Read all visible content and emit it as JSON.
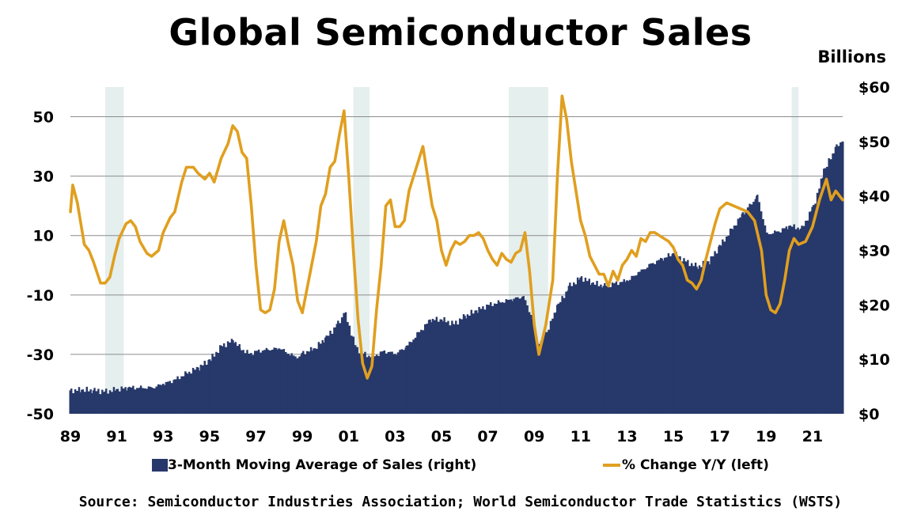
{
  "chart_data": {
    "type": "bar+line",
    "title": "Global Semiconductor Sales",
    "right_axis_unit": "Billions",
    "source": "Source: Semiconductor Industries Association; World Semiconductor Trade Statistics (WSTS)",
    "x_tick_labels": [
      "89",
      "91",
      "93",
      "95",
      "97",
      "99",
      "01",
      "03",
      "05",
      "07",
      "09",
      "11",
      "13",
      "15",
      "17",
      "19",
      "21"
    ],
    "x_tick_years": [
      1989,
      1991,
      1993,
      1995,
      1997,
      1999,
      2001,
      2003,
      2005,
      2007,
      2009,
      2011,
      2013,
      2015,
      2017,
      2019,
      2021
    ],
    "x_range": [
      1989.0,
      2022.3
    ],
    "y_left": {
      "ticks": [
        50,
        30,
        10,
        -10,
        -30,
        -50
      ],
      "tick_labels": [
        "50",
        "30",
        "10",
        "-10",
        "-30",
        "-50"
      ],
      "range": [
        -50,
        60
      ]
    },
    "y_right": {
      "ticks": [
        0,
        10,
        20,
        30,
        40,
        50,
        60
      ],
      "tick_labels": [
        "$0",
        "$10",
        "$20",
        "$30",
        "$40",
        "$50",
        "$60"
      ],
      "range": [
        0,
        60
      ]
    },
    "gridlines": "horizontal",
    "recession_shading": [
      [
        1990.5,
        1991.3
      ],
      [
        2001.2,
        2001.9
      ],
      [
        2007.9,
        2009.6
      ],
      [
        2020.1,
        2020.4
      ]
    ],
    "legend_position": "bottom",
    "colors": {
      "sales_bars": "#27386a",
      "yoy_line": "#e09f1f",
      "recession": "#e5efee",
      "grid": "#8c8c8c"
    },
    "series": [
      {
        "name": "3-Month Moving Average of Sales (right)",
        "kind": "bar",
        "axis": "right",
        "points": [
          [
            1989.0,
            4.3
          ],
          [
            1989.5,
            4.4
          ],
          [
            1990.0,
            4.3
          ],
          [
            1990.5,
            4.1
          ],
          [
            1991.0,
            4.5
          ],
          [
            1991.5,
            4.8
          ],
          [
            1992.0,
            4.8
          ],
          [
            1992.5,
            4.8
          ],
          [
            1993.0,
            5.5
          ],
          [
            1993.5,
            6.3
          ],
          [
            1994.0,
            7.5
          ],
          [
            1994.5,
            8.5
          ],
          [
            1995.0,
            10.0
          ],
          [
            1995.5,
            12.5
          ],
          [
            1996.0,
            13.5
          ],
          [
            1996.3,
            12.0
          ],
          [
            1996.7,
            11.0
          ],
          [
            1997.0,
            11.5
          ],
          [
            1997.5,
            11.8
          ],
          [
            1998.0,
            12.0
          ],
          [
            1998.4,
            11.0
          ],
          [
            1998.8,
            10.2
          ],
          [
            1999.0,
            11.2
          ],
          [
            1999.5,
            12.0
          ],
          [
            2000.0,
            14.0
          ],
          [
            2000.5,
            16.5
          ],
          [
            2000.8,
            18.5
          ],
          [
            2001.0,
            16.0
          ],
          [
            2001.3,
            12.0
          ],
          [
            2001.7,
            10.8
          ],
          [
            2002.0,
            10.5
          ],
          [
            2002.5,
            11.5
          ],
          [
            2003.0,
            11.0
          ],
          [
            2003.5,
            12.5
          ],
          [
            2004.0,
            15.0
          ],
          [
            2004.5,
            17.3
          ],
          [
            2005.0,
            17.3
          ],
          [
            2005.5,
            16.5
          ],
          [
            2006.0,
            18.0
          ],
          [
            2006.5,
            19.0
          ],
          [
            2007.0,
            20.0
          ],
          [
            2007.5,
            20.5
          ],
          [
            2008.0,
            21.0
          ],
          [
            2008.5,
            21.5
          ],
          [
            2008.9,
            17.5
          ],
          [
            2009.1,
            12.5
          ],
          [
            2009.5,
            15.0
          ],
          [
            2010.0,
            20.0
          ],
          [
            2010.5,
            23.5
          ],
          [
            2011.0,
            25.0
          ],
          [
            2011.5,
            24.0
          ],
          [
            2012.0,
            23.5
          ],
          [
            2012.5,
            24.0
          ],
          [
            2013.0,
            24.5
          ],
          [
            2013.5,
            26.0
          ],
          [
            2014.0,
            27.5
          ],
          [
            2014.5,
            28.5
          ],
          [
            2015.0,
            29.5
          ],
          [
            2015.5,
            28.0
          ],
          [
            2016.0,
            27.0
          ],
          [
            2016.5,
            28.0
          ],
          [
            2017.0,
            31.0
          ],
          [
            2017.5,
            34.0
          ],
          [
            2018.0,
            37.0
          ],
          [
            2018.6,
            40.0
          ],
          [
            2019.0,
            33.0
          ],
          [
            2019.5,
            33.5
          ],
          [
            2020.0,
            34.5
          ],
          [
            2020.5,
            34.0
          ],
          [
            2021.0,
            38.0
          ],
          [
            2021.5,
            45.0
          ],
          [
            2022.0,
            49.0
          ],
          [
            2022.3,
            50.0
          ]
        ]
      },
      {
        "name": "% Change Y/Y (left)",
        "kind": "line",
        "axis": "left",
        "points": [
          [
            1989.0,
            18
          ],
          [
            1989.1,
            27
          ],
          [
            1989.3,
            21
          ],
          [
            1989.6,
            7
          ],
          [
            1989.8,
            5
          ],
          [
            1990.0,
            1
          ],
          [
            1990.3,
            -6
          ],
          [
            1990.5,
            -6
          ],
          [
            1990.7,
            -4
          ],
          [
            1990.9,
            3
          ],
          [
            1991.1,
            9
          ],
          [
            1991.4,
            14
          ],
          [
            1991.6,
            15
          ],
          [
            1991.8,
            13
          ],
          [
            1992.0,
            8
          ],
          [
            1992.3,
            4
          ],
          [
            1992.5,
            3
          ],
          [
            1992.8,
            5
          ],
          [
            1993.0,
            11
          ],
          [
            1993.3,
            16
          ],
          [
            1993.5,
            18
          ],
          [
            1993.8,
            28
          ],
          [
            1994.0,
            33
          ],
          [
            1994.3,
            33
          ],
          [
            1994.5,
            31
          ],
          [
            1994.8,
            29
          ],
          [
            1995.0,
            31
          ],
          [
            1995.2,
            28
          ],
          [
            1995.5,
            36
          ],
          [
            1995.8,
            41
          ],
          [
            1996.0,
            47
          ],
          [
            1996.2,
            45
          ],
          [
            1996.4,
            38
          ],
          [
            1996.6,
            36
          ],
          [
            1996.8,
            20
          ],
          [
            1997.0,
            0
          ],
          [
            1997.2,
            -15
          ],
          [
            1997.4,
            -16
          ],
          [
            1997.6,
            -15
          ],
          [
            1997.8,
            -8
          ],
          [
            1998.0,
            8
          ],
          [
            1998.2,
            15
          ],
          [
            1998.4,
            7
          ],
          [
            1998.6,
            0
          ],
          [
            1998.8,
            -12
          ],
          [
            1999.0,
            -16
          ],
          [
            1999.2,
            -8
          ],
          [
            1999.4,
            0
          ],
          [
            1999.6,
            8
          ],
          [
            1999.8,
            20
          ],
          [
            2000.0,
            24
          ],
          [
            2000.2,
            33
          ],
          [
            2000.4,
            35
          ],
          [
            2000.6,
            44
          ],
          [
            2000.8,
            52
          ],
          [
            2001.0,
            30
          ],
          [
            2001.2,
            5
          ],
          [
            2001.4,
            -18
          ],
          [
            2001.6,
            -33
          ],
          [
            2001.8,
            -38
          ],
          [
            2002.0,
            -34
          ],
          [
            2002.2,
            -15
          ],
          [
            2002.4,
            0
          ],
          [
            2002.6,
            20
          ],
          [
            2002.8,
            22
          ],
          [
            2003.0,
            13
          ],
          [
            2003.2,
            13
          ],
          [
            2003.4,
            15
          ],
          [
            2003.6,
            25
          ],
          [
            2003.8,
            30
          ],
          [
            2004.0,
            35
          ],
          [
            2004.2,
            40
          ],
          [
            2004.4,
            30
          ],
          [
            2004.6,
            20
          ],
          [
            2004.8,
            15
          ],
          [
            2005.0,
            5
          ],
          [
            2005.2,
            0
          ],
          [
            2005.4,
            5
          ],
          [
            2005.6,
            8
          ],
          [
            2005.8,
            7
          ],
          [
            2006.0,
            8
          ],
          [
            2006.2,
            10
          ],
          [
            2006.4,
            10
          ],
          [
            2006.6,
            11
          ],
          [
            2006.8,
            9
          ],
          [
            2007.0,
            5
          ],
          [
            2007.2,
            2
          ],
          [
            2007.4,
            0
          ],
          [
            2007.6,
            4
          ],
          [
            2007.8,
            2
          ],
          [
            2008.0,
            1
          ],
          [
            2008.2,
            4
          ],
          [
            2008.4,
            5
          ],
          [
            2008.6,
            11
          ],
          [
            2008.8,
            -2
          ],
          [
            2009.0,
            -20
          ],
          [
            2009.2,
            -30
          ],
          [
            2009.5,
            -20
          ],
          [
            2009.8,
            -5
          ],
          [
            2010.0,
            30
          ],
          [
            2010.2,
            57
          ],
          [
            2010.4,
            49
          ],
          [
            2010.6,
            35
          ],
          [
            2010.8,
            25
          ],
          [
            2011.0,
            15
          ],
          [
            2011.2,
            10
          ],
          [
            2011.4,
            3
          ],
          [
            2011.6,
            0
          ],
          [
            2011.8,
            -3
          ],
          [
            2012.0,
            -3
          ],
          [
            2012.2,
            -7
          ],
          [
            2012.4,
            -2
          ],
          [
            2012.6,
            -5
          ],
          [
            2012.8,
            0
          ],
          [
            2013.0,
            2
          ],
          [
            2013.2,
            5
          ],
          [
            2013.4,
            3
          ],
          [
            2013.6,
            9
          ],
          [
            2013.8,
            8
          ],
          [
            2014.0,
            11
          ],
          [
            2014.2,
            11
          ],
          [
            2014.4,
            10
          ],
          [
            2014.6,
            9
          ],
          [
            2014.8,
            8
          ],
          [
            2015.0,
            6
          ],
          [
            2015.2,
            2
          ],
          [
            2015.4,
            0
          ],
          [
            2015.6,
            -5
          ],
          [
            2015.8,
            -6
          ],
          [
            2016.0,
            -8
          ],
          [
            2016.2,
            -5
          ],
          [
            2016.4,
            2
          ],
          [
            2016.6,
            8
          ],
          [
            2016.8,
            14
          ],
          [
            2017.0,
            19
          ],
          [
            2017.3,
            21
          ],
          [
            2017.6,
            20
          ],
          [
            2017.9,
            19
          ],
          [
            2018.2,
            18
          ],
          [
            2018.5,
            15
          ],
          [
            2018.8,
            5
          ],
          [
            2019.0,
            -10
          ],
          [
            2019.2,
            -15
          ],
          [
            2019.4,
            -16
          ],
          [
            2019.6,
            -13
          ],
          [
            2019.8,
            -5
          ],
          [
            2020.0,
            5
          ],
          [
            2020.2,
            9
          ],
          [
            2020.4,
            7
          ],
          [
            2020.7,
            8
          ],
          [
            2021.0,
            13
          ],
          [
            2021.3,
            22
          ],
          [
            2021.6,
            29
          ],
          [
            2021.8,
            22
          ],
          [
            2022.0,
            25
          ],
          [
            2022.3,
            22
          ]
        ]
      }
    ]
  }
}
